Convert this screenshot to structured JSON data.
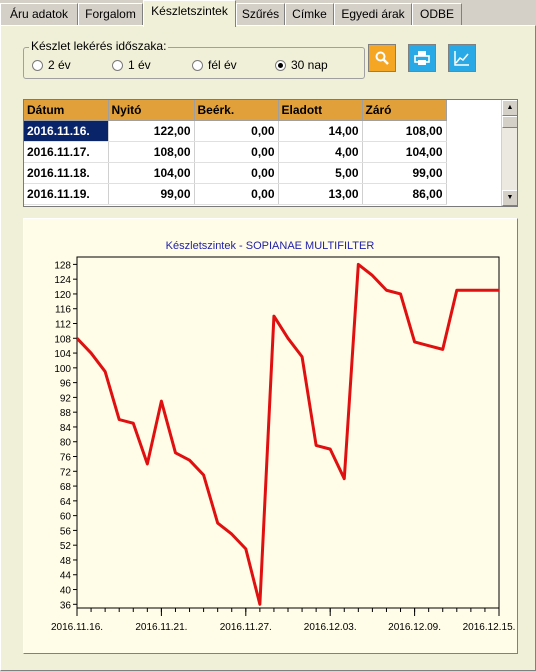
{
  "tabs": [
    {
      "label": "Áru adatok"
    },
    {
      "label": "Forgalom"
    },
    {
      "label": "Készletszintek"
    },
    {
      "label": "Szűrés"
    },
    {
      "label": "Címke"
    },
    {
      "label": "Egyedi árak"
    },
    {
      "label": "ODBE"
    }
  ],
  "period": {
    "title": "Készlet lekérés időszaka:",
    "options": [
      {
        "label": "2 év",
        "selected": false
      },
      {
        "label": "1 év",
        "selected": false
      },
      {
        "label": "fél év",
        "selected": false
      },
      {
        "label": "30 nap",
        "selected": true
      }
    ]
  },
  "buttons": {
    "search": "search-icon",
    "print": "print-icon",
    "chart": "chart-icon"
  },
  "table": {
    "columns": [
      "Dátum",
      "Nyitó",
      "Beérk.",
      "Eladott",
      "Záró"
    ],
    "rows": [
      [
        "2016.11.16.",
        "122,00",
        "0,00",
        "14,00",
        "108,00"
      ],
      [
        "2016.11.17.",
        "108,00",
        "0,00",
        "4,00",
        "104,00"
      ],
      [
        "2016.11.18.",
        "104,00",
        "0,00",
        "5,00",
        "99,00"
      ],
      [
        "2016.11.19.",
        "99,00",
        "0,00",
        "13,00",
        "86,00"
      ]
    ]
  },
  "colors": {
    "accent": "#e1a03a",
    "line": "#e01010",
    "selection": "#0a246a",
    "title": "#2222aa"
  },
  "chart_data": {
    "type": "line",
    "title": "Készletszintek - SOPIANAE MULTIFILTER",
    "x_tick_labels": [
      "2016.11.16.",
      "2016.11.21.",
      "2016.11.27.",
      "2016.12.03.",
      "2016.12.09.",
      "2016.12.15."
    ],
    "y_ticks": [
      36,
      40,
      44,
      48,
      52,
      56,
      60,
      64,
      68,
      72,
      76,
      80,
      84,
      88,
      92,
      96,
      100,
      104,
      108,
      112,
      116,
      120,
      124,
      128
    ],
    "ylim": [
      35,
      130
    ],
    "grid": false,
    "series": [
      {
        "values": [
          108,
          104,
          99,
          86,
          85,
          74,
          91,
          77,
          75,
          71,
          58,
          55,
          51,
          36,
          114,
          108,
          103,
          79,
          78,
          70,
          128,
          125,
          121,
          120,
          107,
          106,
          105,
          121,
          121,
          121,
          121
        ]
      }
    ]
  }
}
